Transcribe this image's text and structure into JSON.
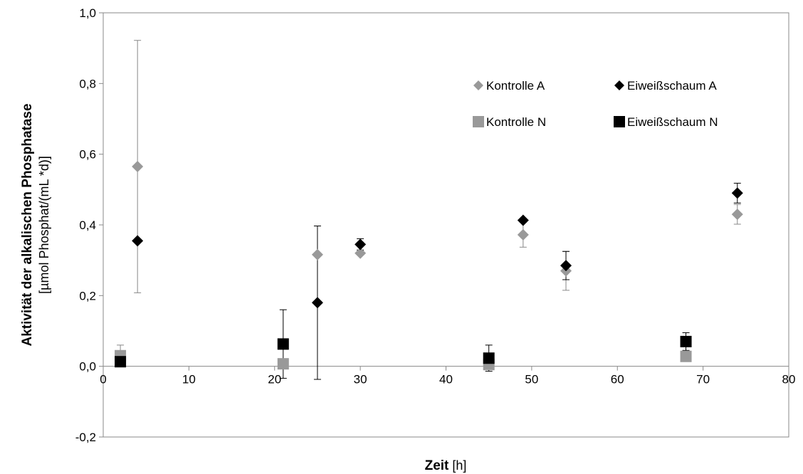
{
  "chart_data": {
    "type": "scatter",
    "title": "",
    "xlabel": "Zeit",
    "xlabel_unit": "[h]",
    "ylabel": "Aktivität der alkalischen Phosphatase",
    "ylabel_unit": "[µmol Phosphat/(mL *d)]",
    "xlim": [
      0,
      80
    ],
    "ylim": [
      -0.2,
      1.0
    ],
    "x_ticks": [
      0,
      10,
      20,
      30,
      40,
      50,
      60,
      70,
      80
    ],
    "x_tick_labels": [
      "0",
      "10",
      "20",
      "30",
      "40",
      "50",
      "60",
      "70",
      "80"
    ],
    "y_ticks": [
      -0.2,
      0.0,
      0.2,
      0.4,
      0.6,
      0.8,
      1.0
    ],
    "y_tick_labels": [
      "-0,2",
      "0,0",
      "0,2",
      "0,4",
      "0,6",
      "0,8",
      "1,0"
    ],
    "grid": false,
    "legend_position": "top-right",
    "series": [
      {
        "name": "Kontrolle A",
        "marker": "diamond",
        "color": "#999999",
        "points": [
          {
            "x": 4,
            "y": 0.565,
            "err": 0.357
          },
          {
            "x": 25,
            "y": 0.316,
            "err": 0
          },
          {
            "x": 30,
            "y": 0.32,
            "err": 0
          },
          {
            "x": 49,
            "y": 0.372,
            "err": 0.035
          },
          {
            "x": 54,
            "y": 0.27,
            "err": 0.055
          },
          {
            "x": 74,
            "y": 0.43,
            "err": 0.028
          }
        ]
      },
      {
        "name": "Eiweißschaum A",
        "marker": "diamond",
        "color": "#000000",
        "points": [
          {
            "x": 4,
            "y": 0.355,
            "err": 0
          },
          {
            "x": 25,
            "y": 0.18,
            "err": 0.217
          },
          {
            "x": 30,
            "y": 0.345,
            "err": 0.016
          },
          {
            "x": 49,
            "y": 0.413,
            "err": 0
          },
          {
            "x": 54,
            "y": 0.285,
            "err": 0.04
          },
          {
            "x": 74,
            "y": 0.49,
            "err": 0.028
          }
        ]
      },
      {
        "name": "Kontrolle N",
        "marker": "square",
        "color": "#999999",
        "points": [
          {
            "x": 2,
            "y": 0.03,
            "err": 0.03
          },
          {
            "x": 21,
            "y": 0.007,
            "err": 0
          },
          {
            "x": 45,
            "y": 0.005,
            "err": 0
          },
          {
            "x": 68,
            "y": 0.028,
            "err": 0
          }
        ]
      },
      {
        "name": "Eiweißschaum N",
        "marker": "square",
        "color": "#000000",
        "points": [
          {
            "x": 2,
            "y": 0.013,
            "err": 0
          },
          {
            "x": 21,
            "y": 0.063,
            "err": 0.097
          },
          {
            "x": 45,
            "y": 0.023,
            "err": 0.037
          },
          {
            "x": 68,
            "y": 0.07,
            "err": 0.025
          }
        ]
      }
    ]
  }
}
